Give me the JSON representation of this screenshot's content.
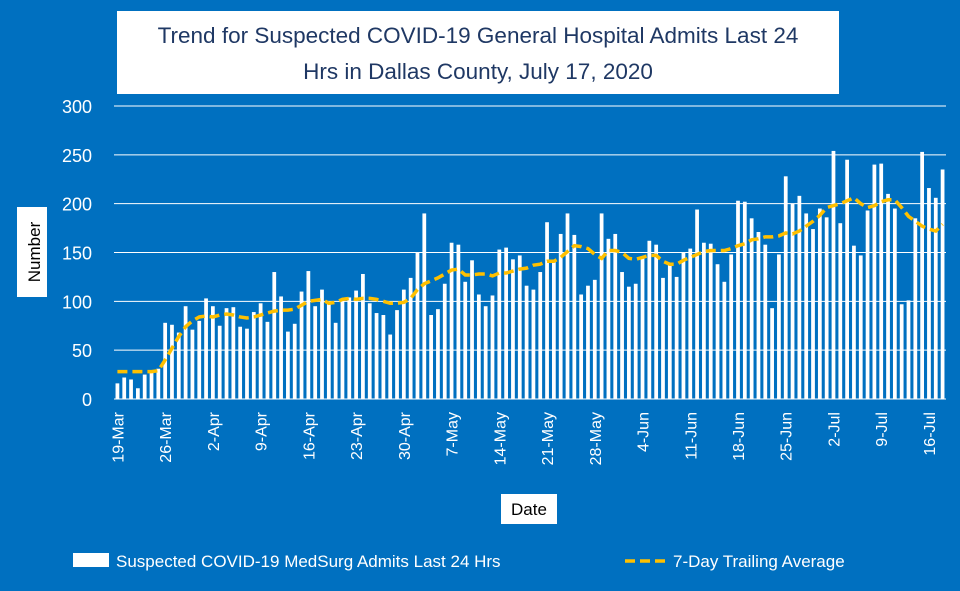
{
  "chart_data": {
    "type": "bar",
    "title_line1": "Trend for Suspected COVID-19 General Hospital Admits Last 24",
    "title_line2": "Hrs in Dallas County, July 17, 2020",
    "xlabel": "Date",
    "ylabel": "Number",
    "ylim": [
      0,
      300
    ],
    "yticks": [
      0,
      50,
      100,
      150,
      200,
      250,
      300
    ],
    "grid": true,
    "legend_position": "bottom",
    "start_date": "19-Mar",
    "end_date": "16-Jul",
    "x_tick_labels": [
      "19-Mar",
      "26-Mar",
      "2-Apr",
      "9-Apr",
      "16-Apr",
      "23-Apr",
      "30-Apr",
      "7-May",
      "14-May",
      "21-May",
      "28-May",
      "4-Jun",
      "11-Jun",
      "18-Jun",
      "25-Jun",
      "2-Jul",
      "9-Jul",
      "16-Jul"
    ],
    "colors": {
      "background": "#0070C0",
      "bars": "#FFFFFF",
      "average_line": "#FFC000",
      "grid": "#FFFFFF"
    },
    "series": [
      {
        "name": "Suspected COVID-19 MedSurg Admits Last 24 Hrs",
        "type": "bar",
        "values": [
          16,
          22,
          20,
          11,
          25,
          29,
          31,
          78,
          76,
          68,
          95,
          71,
          80,
          103,
          95,
          75,
          93,
          94,
          74,
          72,
          89,
          98,
          79,
          130,
          105,
          69,
          77,
          110,
          131,
          95,
          112,
          100,
          78,
          101,
          104,
          111,
          128,
          98,
          88,
          86,
          66,
          91,
          112,
          124,
          150,
          190,
          86,
          92,
          118,
          160,
          158,
          120,
          142,
          107,
          95,
          106,
          153,
          155,
          143,
          147,
          116,
          112,
          130,
          181,
          140,
          169,
          190,
          168,
          107,
          116,
          122,
          190,
          164,
          169,
          130,
          115,
          118,
          145,
          162,
          158,
          124,
          139,
          125,
          150,
          154,
          194,
          160,
          159,
          138,
          120,
          148,
          203,
          202,
          185,
          171,
          158,
          93,
          148,
          228,
          200,
          208,
          190,
          174,
          195,
          186,
          254,
          180,
          245,
          157,
          147,
          193,
          240,
          241,
          210,
          195,
          97,
          101,
          185,
          253,
          216,
          206,
          235
        ]
      },
      {
        "name": "7-Day Trailing Average",
        "type": "line",
        "values": [
          28,
          28,
          28,
          28,
          28,
          28,
          29,
          40,
          52,
          64,
          74,
          80,
          84,
          85,
          84,
          86,
          87,
          86,
          84,
          83,
          84,
          86,
          88,
          90,
          91,
          91,
          92,
          96,
          100,
          101,
          102,
          98,
          99,
          102,
          103,
          102,
          103,
          103,
          102,
          100,
          98,
          98,
          99,
          103,
          112,
          118,
          121,
          124,
          128,
          132,
          133,
          127,
          127,
          128,
          128,
          126,
          129,
          129,
          131,
          133,
          134,
          137,
          138,
          141,
          141,
          145,
          151,
          157,
          156,
          154,
          148,
          144,
          152,
          152,
          150,
          144,
          143,
          145,
          147,
          147,
          141,
          138,
          138,
          142,
          145,
          148,
          151,
          152,
          152,
          152,
          154,
          157,
          159,
          163,
          164,
          166,
          166,
          167,
          170,
          169,
          172,
          177,
          182,
          188,
          196,
          198,
          200,
          203,
          206,
          200,
          196,
          198,
          202,
          204,
          204,
          196,
          187,
          182,
          177,
          174,
          172,
          179
        ]
      }
    ]
  }
}
